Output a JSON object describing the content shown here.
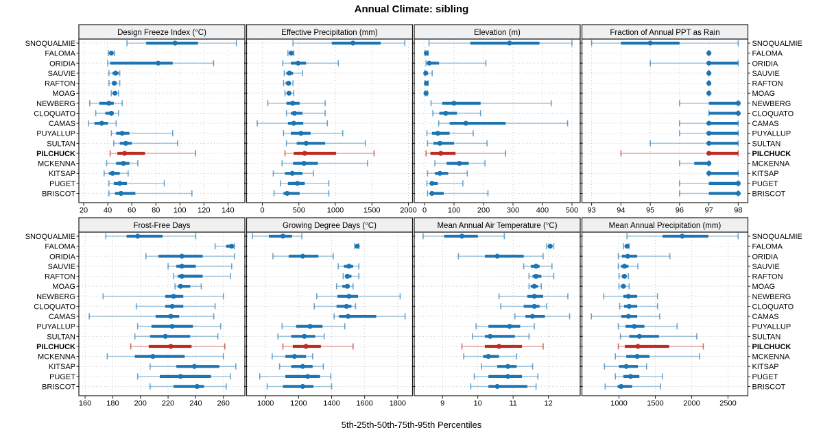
{
  "title": "Annual Climate: sibling",
  "footer": "5th-25th-50th-75th-95th Percentiles",
  "sites": [
    "SNOQUALMIE",
    "FALOMA",
    "ORIDIA",
    "SAUVIE",
    "RAFTON",
    "MOAG",
    "NEWBERG",
    "CLOQUATO",
    "CAMAS",
    "PUYALLUP",
    "SULTAN",
    "PILCHUCK",
    "MCKENNA",
    "KITSAP",
    "PUGET",
    "BRISCOT"
  ],
  "highlight_site": "PILCHUCK",
  "colors": {
    "normal": "#1B74B3",
    "normal_light": "rgba(27,116,179,0.38)",
    "normal_cap": "rgba(27,116,179,0.65)",
    "highlight": "#BC2C23",
    "highlight_light": "rgba(188,44,35,0.38)",
    "highlight_cap": "rgba(188,44,35,0.70)",
    "strip_bg": "#F0F0F0",
    "grid": "#C8C8C8",
    "border": "#1A1A1A",
    "text": "#000000"
  },
  "chart_data": {
    "type": "percentile-dotplot",
    "percentiles": [
      5,
      25,
      50,
      75,
      95
    ],
    "percentile_labels": [
      "5th",
      "25th",
      "50th",
      "75th",
      "95th"
    ],
    "note": "values arrays are aligned with sites order; each entry is [p5,p25,p50,p75,p95]",
    "panels": [
      {
        "title": "Design Freeze Index (°C)",
        "row": 0,
        "col": 0,
        "xlim": [
          16,
          154
        ],
        "ticks": [
          20,
          40,
          60,
          80,
          100,
          120,
          140
        ],
        "values": [
          [
            56,
            72,
            96,
            115,
            147
          ],
          [
            40.5,
            41.5,
            43,
            44.5,
            45.5
          ],
          [
            40,
            42,
            82,
            94,
            128
          ],
          [
            41,
            44,
            46.5,
            49,
            50
          ],
          [
            41,
            43.5,
            45.5,
            47.5,
            50
          ],
          [
            43,
            44.5,
            46,
            47.5,
            49
          ],
          [
            25,
            33,
            41,
            45,
            52
          ],
          [
            30,
            38,
            43,
            45,
            49
          ],
          [
            24,
            29,
            35,
            40,
            47
          ],
          [
            43,
            47,
            52,
            58,
            94
          ],
          [
            45,
            50,
            55,
            60,
            98
          ],
          [
            42,
            48,
            54,
            71,
            113
          ],
          [
            39,
            47,
            53,
            58,
            65
          ],
          [
            37,
            41,
            44,
            50,
            57
          ],
          [
            41,
            45,
            50,
            56,
            87
          ],
          [
            41,
            46,
            51,
            63,
            110
          ]
        ]
      },
      {
        "title": "Effective Precipitation (mm)",
        "row": 0,
        "col": 1,
        "xlim": [
          -216,
          2056
        ],
        "ticks": [
          0,
          500,
          1000,
          1500,
          2000
        ],
        "values": [
          [
            420,
            950,
            1240,
            1620,
            1950
          ],
          [
            350,
            375,
            395,
            415,
            430
          ],
          [
            280,
            390,
            490,
            600,
            1040
          ],
          [
            300,
            330,
            370,
            420,
            550
          ],
          [
            290,
            320,
            360,
            390,
            420
          ],
          [
            310,
            340,
            365,
            390,
            430
          ],
          [
            75,
            330,
            415,
            510,
            860
          ],
          [
            330,
            390,
            440,
            550,
            860
          ],
          [
            -70,
            350,
            430,
            560,
            890
          ],
          [
            290,
            390,
            530,
            660,
            1100
          ],
          [
            330,
            470,
            600,
            860,
            1410
          ],
          [
            310,
            430,
            580,
            1010,
            1530
          ],
          [
            270,
            420,
            570,
            760,
            1440
          ],
          [
            150,
            310,
            410,
            550,
            700
          ],
          [
            250,
            350,
            480,
            580,
            910
          ],
          [
            160,
            290,
            340,
            510,
            910
          ]
        ]
      },
      {
        "title": "Elevation (m)",
        "row": 0,
        "col": 2,
        "xlim": [
          -35,
          528
        ],
        "ticks": [
          0,
          100,
          200,
          300,
          400,
          500
        ],
        "values": [
          [
            15,
            155,
            288,
            390,
            500
          ],
          [
            2,
            4,
            6,
            9,
            12
          ],
          [
            5,
            10,
            16,
            49,
            208
          ],
          [
            1,
            2,
            4,
            8,
            26
          ],
          [
            2,
            4,
            6,
            9,
            12
          ],
          [
            1,
            3,
            5,
            7,
            10
          ],
          [
            22,
            60,
            100,
            190,
            430
          ],
          [
            28,
            50,
            72,
            110,
            190
          ],
          [
            48,
            85,
            140,
            275,
            485
          ],
          [
            8,
            25,
            45,
            85,
            165
          ],
          [
            10,
            30,
            52,
            100,
            212
          ],
          [
            5,
            20,
            55,
            105,
            275
          ],
          [
            35,
            75,
            118,
            150,
            205
          ],
          [
            10,
            35,
            52,
            80,
            145
          ],
          [
            8,
            18,
            25,
            45,
            130
          ],
          [
            10,
            18,
            25,
            65,
            215
          ]
        ]
      },
      {
        "title": "Fraction of Annual PPT as Rain",
        "row": 0,
        "col": 3,
        "xlim": [
          92.67,
          98.33
        ],
        "ticks": [
          93,
          94,
          95,
          96,
          97,
          98
        ],
        "values": [
          [
            93,
            94,
            95,
            96,
            98
          ],
          [
            97,
            97,
            97,
            97,
            97
          ],
          [
            95,
            97,
            97,
            98,
            98
          ],
          [
            97,
            97,
            97,
            97,
            97
          ],
          [
            97,
            97,
            97,
            97,
            97
          ],
          [
            97,
            97,
            97,
            97,
            97
          ],
          [
            96,
            97,
            98,
            98,
            98
          ],
          [
            97,
            97,
            98,
            98,
            98
          ],
          [
            96,
            97,
            97,
            98,
            98
          ],
          [
            96,
            97,
            97,
            98,
            98
          ],
          [
            95,
            97,
            97,
            98,
            98
          ],
          [
            94,
            97,
            97,
            98,
            98
          ],
          [
            96,
            96.5,
            97,
            97,
            97
          ],
          [
            97,
            97,
            97,
            98,
            98
          ],
          [
            96,
            97,
            98,
            98,
            98
          ],
          [
            96,
            97,
            98,
            98,
            98
          ]
        ]
      },
      {
        "title": "Frost-Free Days",
        "row": 1,
        "col": 0,
        "xlim": [
          155.5,
          275.5
        ],
        "ticks": [
          160,
          180,
          200,
          220,
          240,
          260
        ],
        "values": [
          [
            175,
            190,
            198,
            216,
            240
          ],
          [
            254,
            262,
            266,
            267,
            268
          ],
          [
            204,
            213,
            230,
            245,
            268
          ],
          [
            220,
            226,
            230,
            240,
            266
          ],
          [
            224,
            227,
            230,
            245,
            265
          ],
          [
            225,
            227,
            229,
            236,
            244
          ],
          [
            173,
            218,
            224,
            231,
            260
          ],
          [
            197,
            218,
            223,
            231,
            254
          ],
          [
            163,
            211,
            222,
            228,
            253
          ],
          [
            198,
            208,
            223,
            238,
            258
          ],
          [
            196,
            207,
            218,
            236,
            256
          ],
          [
            193,
            206,
            222,
            237,
            261
          ],
          [
            176,
            196,
            209,
            232,
            260
          ],
          [
            207,
            226,
            239,
            257,
            269
          ],
          [
            198,
            214,
            229,
            251,
            265
          ],
          [
            207,
            224,
            241,
            246,
            262
          ]
        ]
      },
      {
        "title": "Growing Degree Days (°C)",
        "row": 1,
        "col": 1,
        "xlim": [
          885,
          1890
        ],
        "ticks": [
          1000,
          1200,
          1400,
          1600,
          1800
        ],
        "values": [
          [
            920,
            1020,
            1105,
            1160,
            1220
          ],
          [
            1540,
            1550,
            1555,
            1560,
            1565
          ],
          [
            1045,
            1140,
            1225,
            1320,
            1410
          ],
          [
            1440,
            1475,
            1505,
            1530,
            1565
          ],
          [
            1470,
            1485,
            1495,
            1520,
            1565
          ],
          [
            1430,
            1465,
            1495,
            1510,
            1530
          ],
          [
            1310,
            1435,
            1505,
            1560,
            1815
          ],
          [
            1295,
            1430,
            1490,
            1520,
            1545
          ],
          [
            1415,
            1445,
            1500,
            1670,
            1845
          ],
          [
            1100,
            1185,
            1270,
            1345,
            1480
          ],
          [
            1075,
            1155,
            1235,
            1300,
            1355
          ],
          [
            1105,
            1165,
            1245,
            1335,
            1530
          ],
          [
            1040,
            1120,
            1175,
            1245,
            1285
          ],
          [
            1085,
            1155,
            1225,
            1285,
            1350
          ],
          [
            965,
            1120,
            1255,
            1330,
            1395
          ],
          [
            1010,
            1105,
            1225,
            1290,
            1400
          ]
        ]
      },
      {
        "title": "Mean Annual Air Temperature (°C)",
        "row": 1,
        "col": 2,
        "xlim": [
          8.2,
          12.9
        ],
        "ticks": [
          9,
          10,
          11,
          12
        ],
        "values": [
          [
            8.45,
            9.05,
            9.55,
            10.0,
            10.75
          ],
          [
            11.95,
            12.0,
            12.05,
            12.1,
            12.15
          ],
          [
            9.45,
            10.2,
            10.55,
            11.3,
            11.85
          ],
          [
            11.3,
            11.5,
            11.65,
            11.75,
            12.1
          ],
          [
            11.45,
            11.55,
            11.65,
            11.8,
            12.15
          ],
          [
            11.45,
            11.5,
            11.6,
            11.7,
            11.8
          ],
          [
            10.6,
            11.4,
            11.6,
            11.85,
            12.55
          ],
          [
            10.65,
            11.3,
            11.6,
            11.75,
            11.95
          ],
          [
            11.05,
            11.35,
            11.55,
            11.9,
            12.6
          ],
          [
            9.95,
            10.3,
            10.9,
            11.2,
            11.6
          ],
          [
            9.85,
            10.2,
            10.35,
            11.05,
            11.45
          ],
          [
            9.55,
            10.2,
            10.6,
            11.25,
            11.85
          ],
          [
            9.6,
            10.15,
            10.3,
            10.6,
            11.1
          ],
          [
            10.1,
            10.55,
            10.85,
            11.1,
            11.55
          ],
          [
            9.9,
            10.3,
            10.85,
            11.25,
            11.7
          ],
          [
            9.8,
            10.3,
            10.55,
            11.4,
            11.65
          ]
        ]
      },
      {
        "title": "Mean Annual Precipitation (mm)",
        "row": 1,
        "col": 3,
        "xlim": [
          490,
          2774
        ],
        "ticks": [
          1000,
          1500,
          2000,
          2500
        ],
        "values": [
          [
            1110,
            1600,
            1870,
            2230,
            2640
          ],
          [
            1060,
            1090,
            1110,
            1125,
            1140
          ],
          [
            990,
            1040,
            1120,
            1250,
            1700
          ],
          [
            990,
            1030,
            1075,
            1130,
            1260
          ],
          [
            1000,
            1040,
            1075,
            1100,
            1130
          ],
          [
            1000,
            1030,
            1060,
            1090,
            1140
          ],
          [
            790,
            1060,
            1130,
            1250,
            1530
          ],
          [
            1010,
            1070,
            1140,
            1250,
            1530
          ],
          [
            620,
            1030,
            1130,
            1250,
            1560
          ],
          [
            990,
            1090,
            1210,
            1350,
            1800
          ],
          [
            1020,
            1140,
            1280,
            1550,
            2070
          ],
          [
            990,
            1080,
            1260,
            1690,
            2160
          ],
          [
            950,
            1100,
            1250,
            1420,
            2110
          ],
          [
            800,
            1000,
            1100,
            1260,
            1380
          ],
          [
            950,
            1060,
            1160,
            1280,
            1600
          ],
          [
            810,
            980,
            1030,
            1180,
            1570
          ]
        ]
      }
    ]
  }
}
